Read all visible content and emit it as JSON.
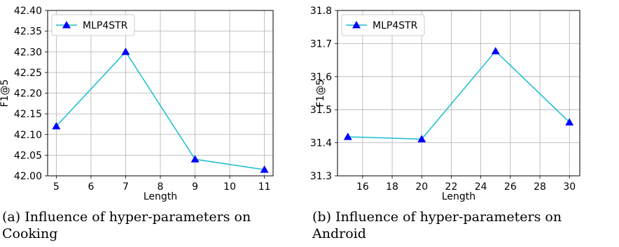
{
  "captions": [
    {
      "line1": "(a) Influence of hyper-parameters on",
      "line2": "Cooking"
    },
    {
      "line1": "(b) Influence of hyper-parameters on",
      "line2": "Android"
    }
  ],
  "chart_data": [
    {
      "type": "line",
      "xlabel": "Length",
      "ylabel": "F1@5",
      "xlim": [
        5,
        11
      ],
      "ylim": [
        42.0,
        42.4
      ],
      "xticks": [
        "5",
        "6",
        "7",
        "8",
        "9",
        "10",
        "11"
      ],
      "yticks": [
        "42.00",
        "42.05",
        "42.10",
        "42.15",
        "42.20",
        "42.25",
        "42.30",
        "42.35",
        "42.40"
      ],
      "grid": true,
      "legend_position": "top-left",
      "series": [
        {
          "name": "MLP4STR",
          "color": "#17becf",
          "marker": "triangle",
          "marker_color": "#0000ff",
          "x": [
            5,
            7,
            9,
            11
          ],
          "y": [
            42.12,
            42.3,
            42.04,
            42.015
          ]
        }
      ]
    },
    {
      "type": "line",
      "xlabel": "Length",
      "ylabel": "F1@5",
      "xlim": [
        15,
        30
      ],
      "ylim": [
        31.3,
        31.8
      ],
      "xticks": [
        "16",
        "18",
        "20",
        "22",
        "24",
        "26",
        "28",
        "30"
      ],
      "yticks": [
        "31.3",
        "31.4",
        "31.5",
        "31.6",
        "31.7",
        "31.8"
      ],
      "grid": true,
      "legend_position": "top-left",
      "series": [
        {
          "name": "MLP4STR",
          "color": "#17becf",
          "marker": "triangle",
          "marker_color": "#0000ff",
          "x": [
            15,
            20,
            25,
            30
          ],
          "y": [
            31.418,
            31.411,
            31.677,
            31.462
          ]
        }
      ]
    }
  ]
}
